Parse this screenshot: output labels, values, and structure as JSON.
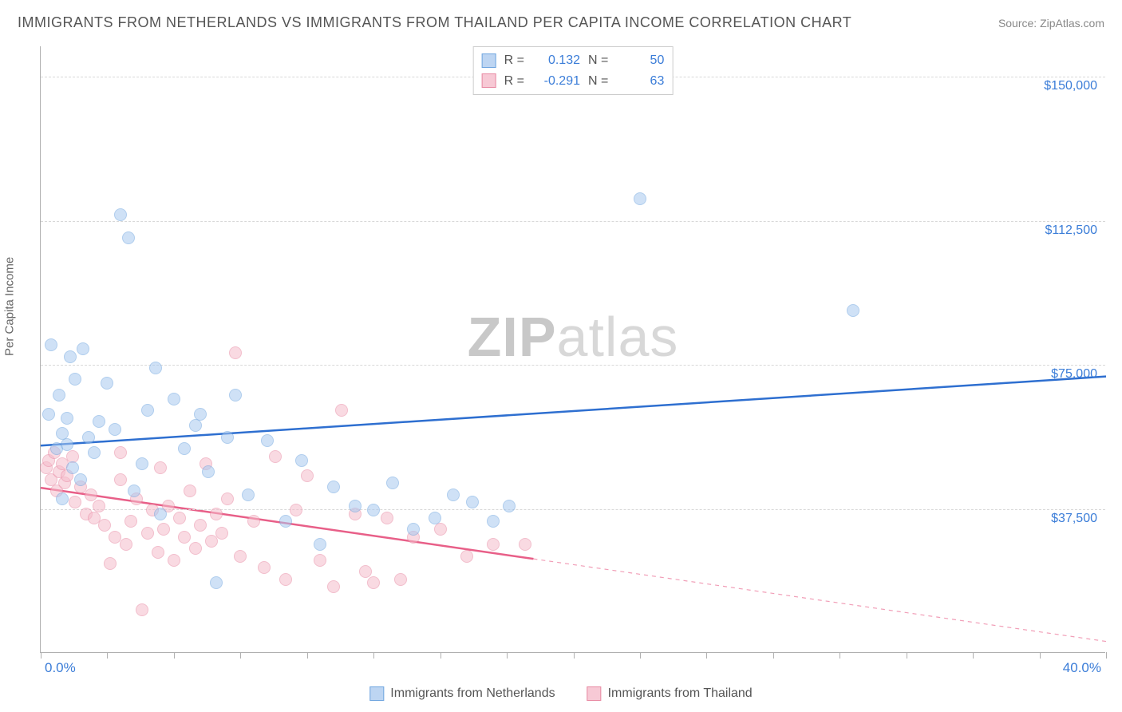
{
  "title": "IMMIGRANTS FROM NETHERLANDS VS IMMIGRANTS FROM THAILAND PER CAPITA INCOME CORRELATION CHART",
  "source": "Source: ZipAtlas.com",
  "watermark_bold": "ZIP",
  "watermark_light": "atlas",
  "ylabel": "Per Capita Income",
  "chart": {
    "type": "scatter",
    "background_color": "#ffffff",
    "grid_color": "#d8d8d8",
    "axis_color": "#b0b0b0",
    "xlim": [
      0,
      40
    ],
    "ylim": [
      0,
      158000
    ],
    "ytick_step": 37500,
    "ytick_labels": [
      "$37,500",
      "$75,000",
      "$112,500",
      "$150,000"
    ],
    "ytick_values": [
      37500,
      75000,
      112500,
      150000
    ],
    "xtick_values": [
      0,
      2.5,
      5,
      7.5,
      10,
      12.5,
      15,
      17.5,
      20,
      22.5,
      25,
      27.5,
      30,
      32.5,
      35,
      37.5,
      40
    ],
    "x_start_label": "0.0%",
    "x_end_label": "40.0%",
    "tick_label_color": "#3b7dd8",
    "axis_label_color": "#666666",
    "point_radius": 8,
    "point_opacity": 0.55,
    "series": [
      {
        "name": "Immigrants from Netherlands",
        "color_fill": "#a9c9ef",
        "color_stroke": "#6fa5df",
        "swatch_fill": "#bdd5f2",
        "swatch_stroke": "#6fa5df",
        "R": "0.132",
        "N": "50",
        "trend": {
          "y_at_xmin": 54000,
          "y_at_xmax": 72000,
          "color": "#2e6fd0",
          "width": 2.5,
          "solid_end_x": 40
        },
        "points": [
          [
            0.3,
            62000
          ],
          [
            0.4,
            80000
          ],
          [
            0.6,
            53000
          ],
          [
            0.7,
            67000
          ],
          [
            0.8,
            40000
          ],
          [
            0.8,
            57000
          ],
          [
            1.0,
            61000
          ],
          [
            1.1,
            77000
          ],
          [
            1.2,
            48000
          ],
          [
            1.3,
            71000
          ],
          [
            1.5,
            45000
          ],
          [
            1.6,
            79000
          ],
          [
            1.8,
            56000
          ],
          [
            2.0,
            52000
          ],
          [
            2.2,
            60000
          ],
          [
            2.5,
            70000
          ],
          [
            3.0,
            114000
          ],
          [
            3.3,
            108000
          ],
          [
            3.5,
            42000
          ],
          [
            4.0,
            63000
          ],
          [
            4.3,
            74000
          ],
          [
            4.5,
            36000
          ],
          [
            5.0,
            66000
          ],
          [
            5.4,
            53000
          ],
          [
            6.0,
            62000
          ],
          [
            6.3,
            47000
          ],
          [
            6.6,
            18000
          ],
          [
            7.0,
            56000
          ],
          [
            7.3,
            67000
          ],
          [
            7.8,
            41000
          ],
          [
            8.5,
            55000
          ],
          [
            9.2,
            34000
          ],
          [
            9.8,
            50000
          ],
          [
            10.5,
            28000
          ],
          [
            11.0,
            43000
          ],
          [
            11.8,
            38000
          ],
          [
            12.5,
            37000
          ],
          [
            13.2,
            44000
          ],
          [
            14.0,
            32000
          ],
          [
            14.8,
            35000
          ],
          [
            15.5,
            41000
          ],
          [
            16.2,
            39000
          ],
          [
            17.0,
            34000
          ],
          [
            17.6,
            38000
          ],
          [
            22.5,
            118000
          ],
          [
            30.5,
            89000
          ],
          [
            1.0,
            54000
          ],
          [
            2.8,
            58000
          ],
          [
            3.8,
            49000
          ],
          [
            5.8,
            59000
          ]
        ]
      },
      {
        "name": "Immigrants from Thailand",
        "color_fill": "#f5bccb",
        "color_stroke": "#e88aa3",
        "swatch_fill": "#f7c9d5",
        "swatch_stroke": "#e88aa3",
        "R": "-0.291",
        "N": "63",
        "trend": {
          "y_at_xmin": 43000,
          "y_at_xmax": 3000,
          "color": "#e85f88",
          "width": 2.5,
          "solid_end_x": 18.5
        },
        "points": [
          [
            0.2,
            48000
          ],
          [
            0.3,
            50000
          ],
          [
            0.4,
            45000
          ],
          [
            0.5,
            52000
          ],
          [
            0.6,
            42000
          ],
          [
            0.7,
            47000
          ],
          [
            0.8,
            49000
          ],
          [
            0.9,
            44000
          ],
          [
            1.0,
            46000
          ],
          [
            1.2,
            51000
          ],
          [
            1.3,
            39000
          ],
          [
            1.5,
            43000
          ],
          [
            1.7,
            36000
          ],
          [
            1.9,
            41000
          ],
          [
            2.0,
            35000
          ],
          [
            2.2,
            38000
          ],
          [
            2.4,
            33000
          ],
          [
            2.6,
            23000
          ],
          [
            2.8,
            30000
          ],
          [
            3.0,
            45000
          ],
          [
            3.2,
            28000
          ],
          [
            3.4,
            34000
          ],
          [
            3.6,
            40000
          ],
          [
            3.8,
            11000
          ],
          [
            4.0,
            31000
          ],
          [
            4.2,
            37000
          ],
          [
            4.4,
            26000
          ],
          [
            4.6,
            32000
          ],
          [
            4.8,
            38000
          ],
          [
            5.0,
            24000
          ],
          [
            5.2,
            35000
          ],
          [
            5.4,
            30000
          ],
          [
            5.6,
            42000
          ],
          [
            5.8,
            27000
          ],
          [
            6.0,
            33000
          ],
          [
            6.2,
            49000
          ],
          [
            6.4,
            29000
          ],
          [
            6.6,
            36000
          ],
          [
            6.8,
            31000
          ],
          [
            7.0,
            40000
          ],
          [
            7.3,
            78000
          ],
          [
            7.5,
            25000
          ],
          [
            8.0,
            34000
          ],
          [
            8.4,
            22000
          ],
          [
            8.8,
            51000
          ],
          [
            9.2,
            19000
          ],
          [
            9.6,
            37000
          ],
          [
            10.0,
            46000
          ],
          [
            10.5,
            24000
          ],
          [
            11.0,
            17000
          ],
          [
            11.3,
            63000
          ],
          [
            11.8,
            36000
          ],
          [
            12.2,
            21000
          ],
          [
            12.5,
            18000
          ],
          [
            13.0,
            35000
          ],
          [
            13.5,
            19000
          ],
          [
            14.0,
            30000
          ],
          [
            15.0,
            32000
          ],
          [
            16.0,
            25000
          ],
          [
            17.0,
            28000
          ],
          [
            18.2,
            28000
          ],
          [
            3.0,
            52000
          ],
          [
            4.5,
            48000
          ]
        ]
      }
    ]
  },
  "legend": {
    "R_label": "R =",
    "N_label": "N ="
  }
}
